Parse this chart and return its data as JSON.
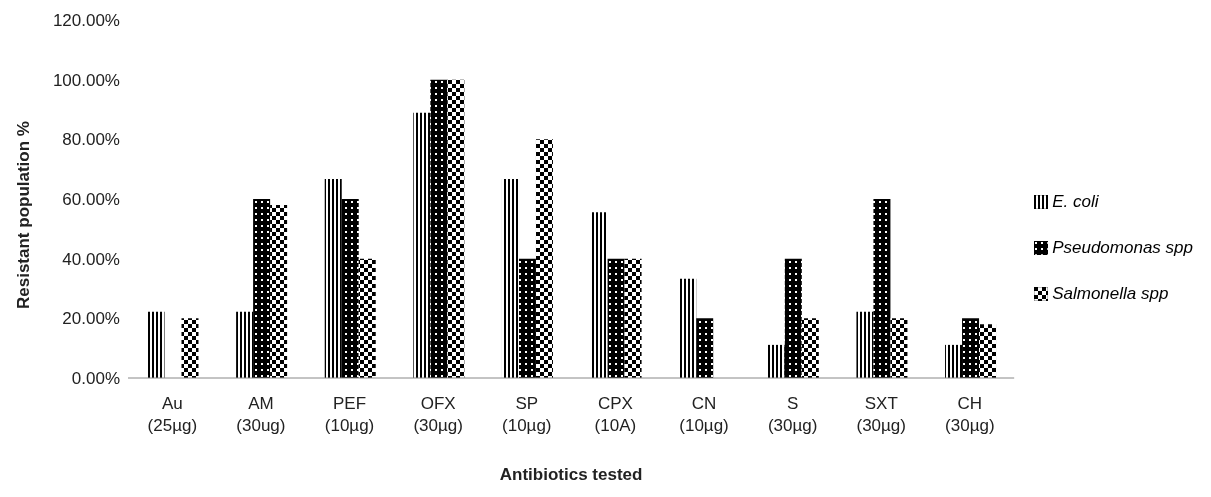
{
  "chart_data": {
    "type": "bar",
    "xlabel": "Antibiotics tested",
    "ylabel": "Resistant population %",
    "categories": [
      "Au\n(25µg)",
      "AM\n(30ug)",
      "PEF\n(10µg)",
      "OFX\n(30µg)",
      "SP\n(10µg)",
      "CPX\n(10A)",
      "CN\n(10µg)",
      "S\n(30µg)",
      "SXT\n(30µg)",
      "CH\n(30µg)"
    ],
    "series": [
      {
        "name": "E. coli",
        "color": "#000000",
        "values": [
          22.2,
          22.2,
          66.7,
          88.9,
          66.7,
          55.6,
          33.3,
          11.1,
          22.2,
          11.1
        ]
      },
      {
        "name": "Pseudomonas spp",
        "color": "#000000",
        "values": [
          0,
          60,
          60,
          100,
          40,
          40,
          20,
          40,
          60,
          20
        ]
      },
      {
        "name": "Salmonella spp",
        "color": "#000000",
        "values": [
          20,
          58,
          40,
          100,
          80,
          40,
          0,
          20,
          20,
          18
        ]
      }
    ],
    "ylim": [
      0,
      120
    ],
    "yticks": [
      {
        "value": 0,
        "label": "0.00%"
      },
      {
        "value": 20,
        "label": "20.00%"
      },
      {
        "value": 40,
        "label": "40.00%"
      },
      {
        "value": 60,
        "label": "60.00%"
      },
      {
        "value": 80,
        "label": "80.00%"
      },
      {
        "value": 100,
        "label": "100.00%"
      },
      {
        "value": 120,
        "label": "120.00%"
      }
    ],
    "grid": false,
    "legend": "right"
  }
}
